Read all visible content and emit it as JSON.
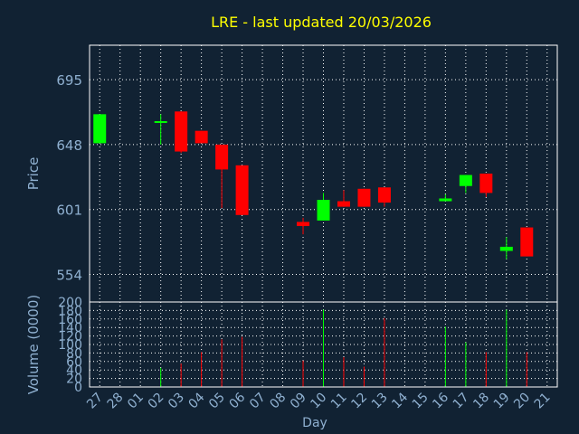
{
  "colors": {
    "background": "#112233",
    "title": "#ffff00",
    "axis_text": "#8fb0d0",
    "grid": "#ffffff",
    "up": "#00ff00",
    "down": "#ff0000"
  },
  "chart_data": {
    "type": "candlestick",
    "title": "LRE - last updated 20/03/2026",
    "xlabel": "Day",
    "ylabel": "Price",
    "volume_label": "Volume (0000)",
    "grid": true,
    "price_ticks": [
      554,
      601,
      648,
      695
    ],
    "volume_ticks": [
      0,
      20,
      40,
      60,
      80,
      100,
      120,
      140,
      160,
      180,
      200
    ],
    "ylim_price": [
      534,
      720
    ],
    "ylim_volume": [
      0,
      200
    ],
    "x_labels": [
      "27",
      "28",
      "01",
      "02",
      "03",
      "04",
      "05",
      "06",
      "07",
      "08",
      "09",
      "10",
      "11",
      "12",
      "13",
      "14",
      "15",
      "16",
      "17",
      "18",
      "19",
      "20",
      "21"
    ],
    "candles": [
      {
        "day": "27",
        "open": 649,
        "close": 670,
        "high": 670,
        "low": 649,
        "volume": 0
      },
      {
        "day": "02",
        "open": 665,
        "close": 665,
        "high": 670,
        "low": 648,
        "volume": 45
      },
      {
        "day": "03",
        "open": 672,
        "close": 643,
        "high": 672,
        "low": 642,
        "volume": 55
      },
      {
        "day": "04",
        "open": 658,
        "close": 649,
        "high": 658,
        "low": 649,
        "volume": 82
      },
      {
        "day": "05",
        "open": 648,
        "close": 630,
        "high": 648,
        "low": 602,
        "volume": 112
      },
      {
        "day": "06",
        "open": 633,
        "close": 597,
        "high": 633,
        "low": 597,
        "volume": 118
      },
      {
        "day": "09",
        "open": 592,
        "close": 589,
        "high": 595,
        "low": 583,
        "volume": 62
      },
      {
        "day": "10",
        "open": 593,
        "close": 608,
        "high": 613,
        "low": 593,
        "volume": 182
      },
      {
        "day": "11",
        "open": 607,
        "close": 603,
        "high": 615,
        "low": 603,
        "volume": 70
      },
      {
        "day": "12",
        "open": 616,
        "close": 603,
        "high": 616,
        "low": 603,
        "volume": 48
      },
      {
        "day": "13",
        "open": 617,
        "close": 606,
        "high": 617,
        "low": 603,
        "volume": 162
      },
      {
        "day": "16",
        "open": 607,
        "close": 609,
        "high": 612,
        "low": 607,
        "volume": 142
      },
      {
        "day": "17",
        "open": 618,
        "close": 626,
        "high": 626,
        "low": 613,
        "volume": 105
      },
      {
        "day": "18",
        "open": 627,
        "close": 613,
        "high": 627,
        "low": 610,
        "volume": 82
      },
      {
        "day": "19",
        "open": 571,
        "close": 574,
        "high": 581,
        "low": 565,
        "volume": 182
      },
      {
        "day": "20",
        "open": 588,
        "close": 567,
        "high": 588,
        "low": 567,
        "volume": 82
      }
    ]
  }
}
